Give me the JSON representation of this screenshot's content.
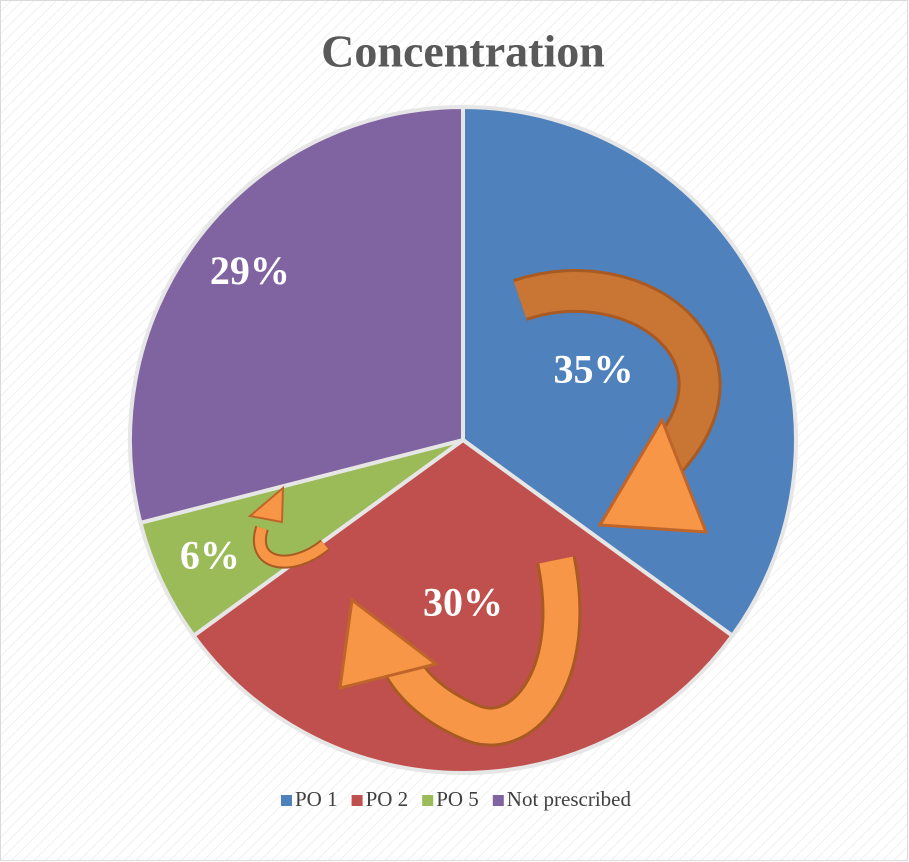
{
  "chart_data": {
    "type": "pie",
    "title": "Concentration",
    "categories": [
      "PO 1",
      "PO 2",
      "PO 5",
      "Not prescribed"
    ],
    "values": [
      35,
      30,
      6,
      29
    ],
    "value_labels": [
      "35%",
      "30%",
      "6%",
      "29%"
    ],
    "colors": [
      "#4f81bd",
      "#c0504d",
      "#9bbb59",
      "#8064a2"
    ],
    "legend": "bottom"
  }
}
